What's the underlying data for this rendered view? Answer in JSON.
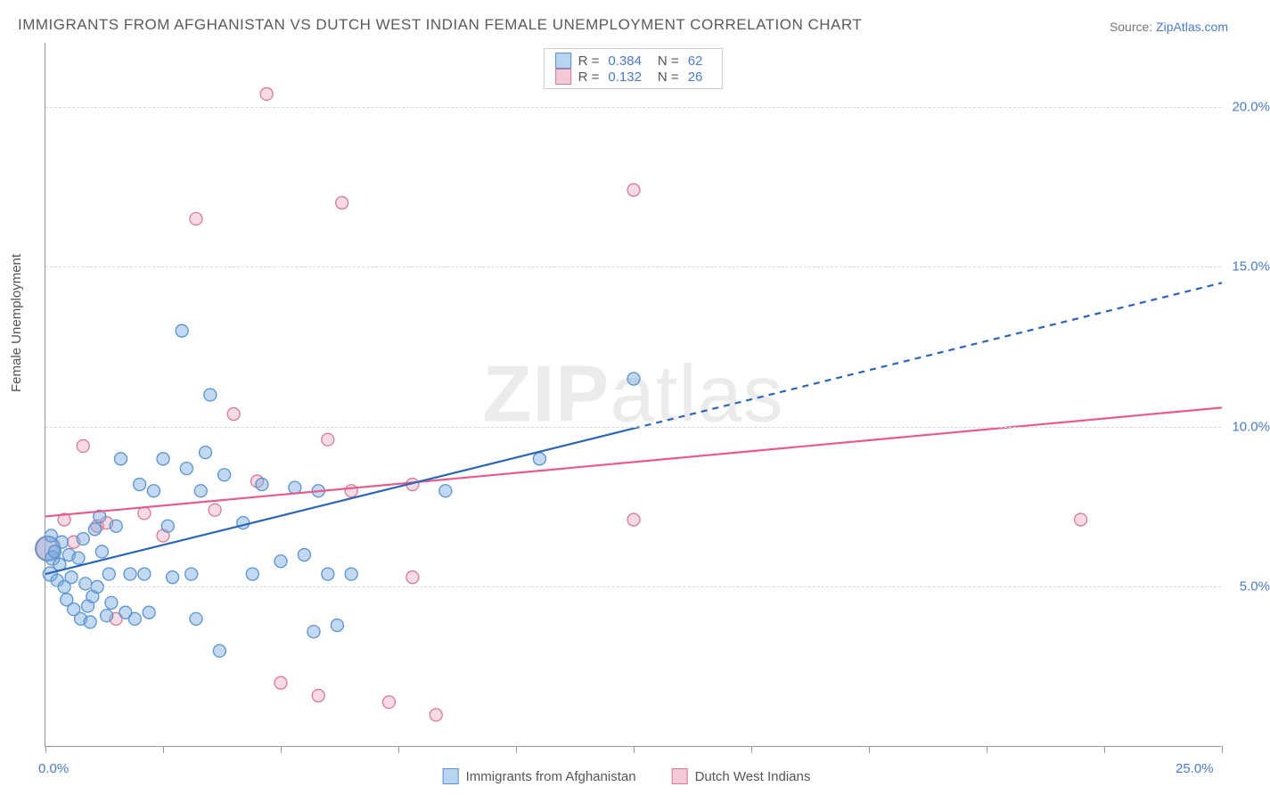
{
  "title": "IMMIGRANTS FROM AFGHANISTAN VS DUTCH WEST INDIAN FEMALE UNEMPLOYMENT CORRELATION CHART",
  "source": {
    "label": "Source: ",
    "link_text": "ZipAtlas.com"
  },
  "ylabel": "Female Unemployment",
  "watermark": {
    "bold": "ZIP",
    "rest": "atlas"
  },
  "chart": {
    "type": "scatter",
    "xlim": [
      0,
      25
    ],
    "ylim": [
      0,
      22
    ],
    "xtick_positions": [
      0,
      2.5,
      5.0,
      7.5,
      10.0,
      12.5,
      15.0,
      17.5,
      20.0,
      22.5,
      25.0
    ],
    "xtick_labels_shown": {
      "0": "0.0%",
      "25": "25.0%"
    },
    "ytick_positions": [
      5,
      10,
      15,
      20
    ],
    "ytick_labels": {
      "5": "5.0%",
      "10": "10.0%",
      "15": "15.0%",
      "20": "20.0%"
    },
    "grid_color": "#d8d8d8",
    "axis_color": "#999999",
    "background_color": "#ffffff",
    "series": {
      "blue": {
        "label": "Immigrants from Afghanistan",
        "R_label": "R =",
        "R": "0.384",
        "N_label": "N =",
        "N": "62",
        "point_fill": "rgba(120,170,225,0.45)",
        "point_stroke": "#5a93d0",
        "swatch_fill": "#b8d4f0",
        "swatch_stroke": "#5a93d0",
        "line_color": "#2a66b5",
        "line_width": 2.2,
        "line_solid_until_x": 12.5,
        "regression": {
          "x1": 0,
          "y1": 5.4,
          "x2": 25,
          "y2": 14.5
        },
        "points": [
          {
            "x": 0.05,
            "y": 6.2,
            "r": 14
          },
          {
            "x": 0.1,
            "y": 5.4,
            "r": 8
          },
          {
            "x": 0.15,
            "y": 5.9,
            "r": 8
          },
          {
            "x": 0.2,
            "y": 6.1,
            "r": 7
          },
          {
            "x": 0.25,
            "y": 5.2,
            "r": 7
          },
          {
            "x": 0.3,
            "y": 5.7,
            "r": 7
          },
          {
            "x": 0.35,
            "y": 6.4,
            "r": 7
          },
          {
            "x": 0.4,
            "y": 5.0,
            "r": 7
          },
          {
            "x": 0.45,
            "y": 4.6,
            "r": 7
          },
          {
            "x": 0.5,
            "y": 6.0,
            "r": 7
          },
          {
            "x": 0.55,
            "y": 5.3,
            "r": 7
          },
          {
            "x": 0.6,
            "y": 4.3,
            "r": 7
          },
          {
            "x": 0.7,
            "y": 5.9,
            "r": 7
          },
          {
            "x": 0.75,
            "y": 4.0,
            "r": 7
          },
          {
            "x": 0.8,
            "y": 6.5,
            "r": 7
          },
          {
            "x": 0.85,
            "y": 5.1,
            "r": 7
          },
          {
            "x": 0.9,
            "y": 4.4,
            "r": 7
          },
          {
            "x": 0.95,
            "y": 3.9,
            "r": 7
          },
          {
            "x": 1.0,
            "y": 4.7,
            "r": 7
          },
          {
            "x": 1.05,
            "y": 6.8,
            "r": 7
          },
          {
            "x": 1.1,
            "y": 5.0,
            "r": 7
          },
          {
            "x": 1.15,
            "y": 7.2,
            "r": 7
          },
          {
            "x": 1.2,
            "y": 6.1,
            "r": 7
          },
          {
            "x": 1.3,
            "y": 4.1,
            "r": 7
          },
          {
            "x": 1.35,
            "y": 5.4,
            "r": 7
          },
          {
            "x": 1.4,
            "y": 4.5,
            "r": 7
          },
          {
            "x": 1.5,
            "y": 6.9,
            "r": 7
          },
          {
            "x": 1.6,
            "y": 9.0,
            "r": 7
          },
          {
            "x": 1.7,
            "y": 4.2,
            "r": 7
          },
          {
            "x": 1.8,
            "y": 5.4,
            "r": 7
          },
          {
            "x": 1.9,
            "y": 4.0,
            "r": 7
          },
          {
            "x": 2.0,
            "y": 8.2,
            "r": 7
          },
          {
            "x": 2.1,
            "y": 5.4,
            "r": 7
          },
          {
            "x": 2.2,
            "y": 4.2,
            "r": 7
          },
          {
            "x": 2.3,
            "y": 8.0,
            "r": 7
          },
          {
            "x": 2.5,
            "y": 9.0,
            "r": 7
          },
          {
            "x": 2.6,
            "y": 6.9,
            "r": 7
          },
          {
            "x": 2.7,
            "y": 5.3,
            "r": 7
          },
          {
            "x": 2.9,
            "y": 13.0,
            "r": 7
          },
          {
            "x": 3.0,
            "y": 8.7,
            "r": 7
          },
          {
            "x": 3.1,
            "y": 5.4,
            "r": 7
          },
          {
            "x": 3.2,
            "y": 4.0,
            "r": 7
          },
          {
            "x": 3.3,
            "y": 8.0,
            "r": 7
          },
          {
            "x": 3.4,
            "y": 9.2,
            "r": 7
          },
          {
            "x": 3.5,
            "y": 11.0,
            "r": 7
          },
          {
            "x": 3.7,
            "y": 3.0,
            "r": 7
          },
          {
            "x": 3.8,
            "y": 8.5,
            "r": 7
          },
          {
            "x": 4.2,
            "y": 7.0,
            "r": 7
          },
          {
            "x": 4.4,
            "y": 5.4,
            "r": 7
          },
          {
            "x": 4.6,
            "y": 8.2,
            "r": 7
          },
          {
            "x": 5.0,
            "y": 5.8,
            "r": 7
          },
          {
            "x": 5.3,
            "y": 8.1,
            "r": 7
          },
          {
            "x": 5.5,
            "y": 6.0,
            "r": 7
          },
          {
            "x": 5.7,
            "y": 3.6,
            "r": 7
          },
          {
            "x": 5.8,
            "y": 8.0,
            "r": 7
          },
          {
            "x": 6.0,
            "y": 5.4,
            "r": 7
          },
          {
            "x": 6.2,
            "y": 3.8,
            "r": 7
          },
          {
            "x": 6.5,
            "y": 5.4,
            "r": 7
          },
          {
            "x": 8.5,
            "y": 8.0,
            "r": 7
          },
          {
            "x": 10.5,
            "y": 9.0,
            "r": 7
          },
          {
            "x": 12.5,
            "y": 11.5,
            "r": 7
          },
          {
            "x": 0.12,
            "y": 6.6,
            "r": 7
          }
        ]
      },
      "pink": {
        "label": "Dutch West Indians",
        "R_label": "R =",
        "R": "0.132",
        "N_label": "N =",
        "N": "26",
        "point_fill": "rgba(235,150,175,0.35)",
        "point_stroke": "#d67a9a",
        "swatch_fill": "#f5c8d7",
        "swatch_stroke": "#d67a9a",
        "line_color": "#e85a8a",
        "line_width": 2.2,
        "regression": {
          "x1": 0,
          "y1": 7.2,
          "x2": 25,
          "y2": 10.6
        },
        "points": [
          {
            "x": 0.05,
            "y": 6.2,
            "r": 13
          },
          {
            "x": 0.4,
            "y": 7.1,
            "r": 7
          },
          {
            "x": 0.6,
            "y": 6.4,
            "r": 7
          },
          {
            "x": 0.8,
            "y": 9.4,
            "r": 7
          },
          {
            "x": 1.1,
            "y": 6.9,
            "r": 7
          },
          {
            "x": 1.3,
            "y": 7.0,
            "r": 7
          },
          {
            "x": 1.5,
            "y": 4.0,
            "r": 7
          },
          {
            "x": 2.1,
            "y": 7.3,
            "r": 7
          },
          {
            "x": 2.5,
            "y": 6.6,
            "r": 7
          },
          {
            "x": 3.2,
            "y": 16.5,
            "r": 7
          },
          {
            "x": 3.6,
            "y": 7.4,
            "r": 7
          },
          {
            "x": 4.0,
            "y": 10.4,
            "r": 7
          },
          {
            "x": 4.5,
            "y": 8.3,
            "r": 7
          },
          {
            "x": 4.7,
            "y": 20.4,
            "r": 7
          },
          {
            "x": 5.0,
            "y": 2.0,
            "r": 7
          },
          {
            "x": 5.8,
            "y": 1.6,
            "r": 7
          },
          {
            "x": 6.0,
            "y": 9.6,
            "r": 7
          },
          {
            "x": 6.3,
            "y": 17.0,
            "r": 7
          },
          {
            "x": 6.5,
            "y": 8.0,
            "r": 7
          },
          {
            "x": 7.3,
            "y": 1.4,
            "r": 7
          },
          {
            "x": 7.8,
            "y": 5.3,
            "r": 7
          },
          {
            "x": 8.3,
            "y": 1.0,
            "r": 7
          },
          {
            "x": 12.5,
            "y": 17.4,
            "r": 7
          },
          {
            "x": 12.5,
            "y": 7.1,
            "r": 7
          },
          {
            "x": 7.8,
            "y": 8.2,
            "r": 7
          },
          {
            "x": 22.0,
            "y": 7.1,
            "r": 7
          }
        ]
      }
    }
  }
}
